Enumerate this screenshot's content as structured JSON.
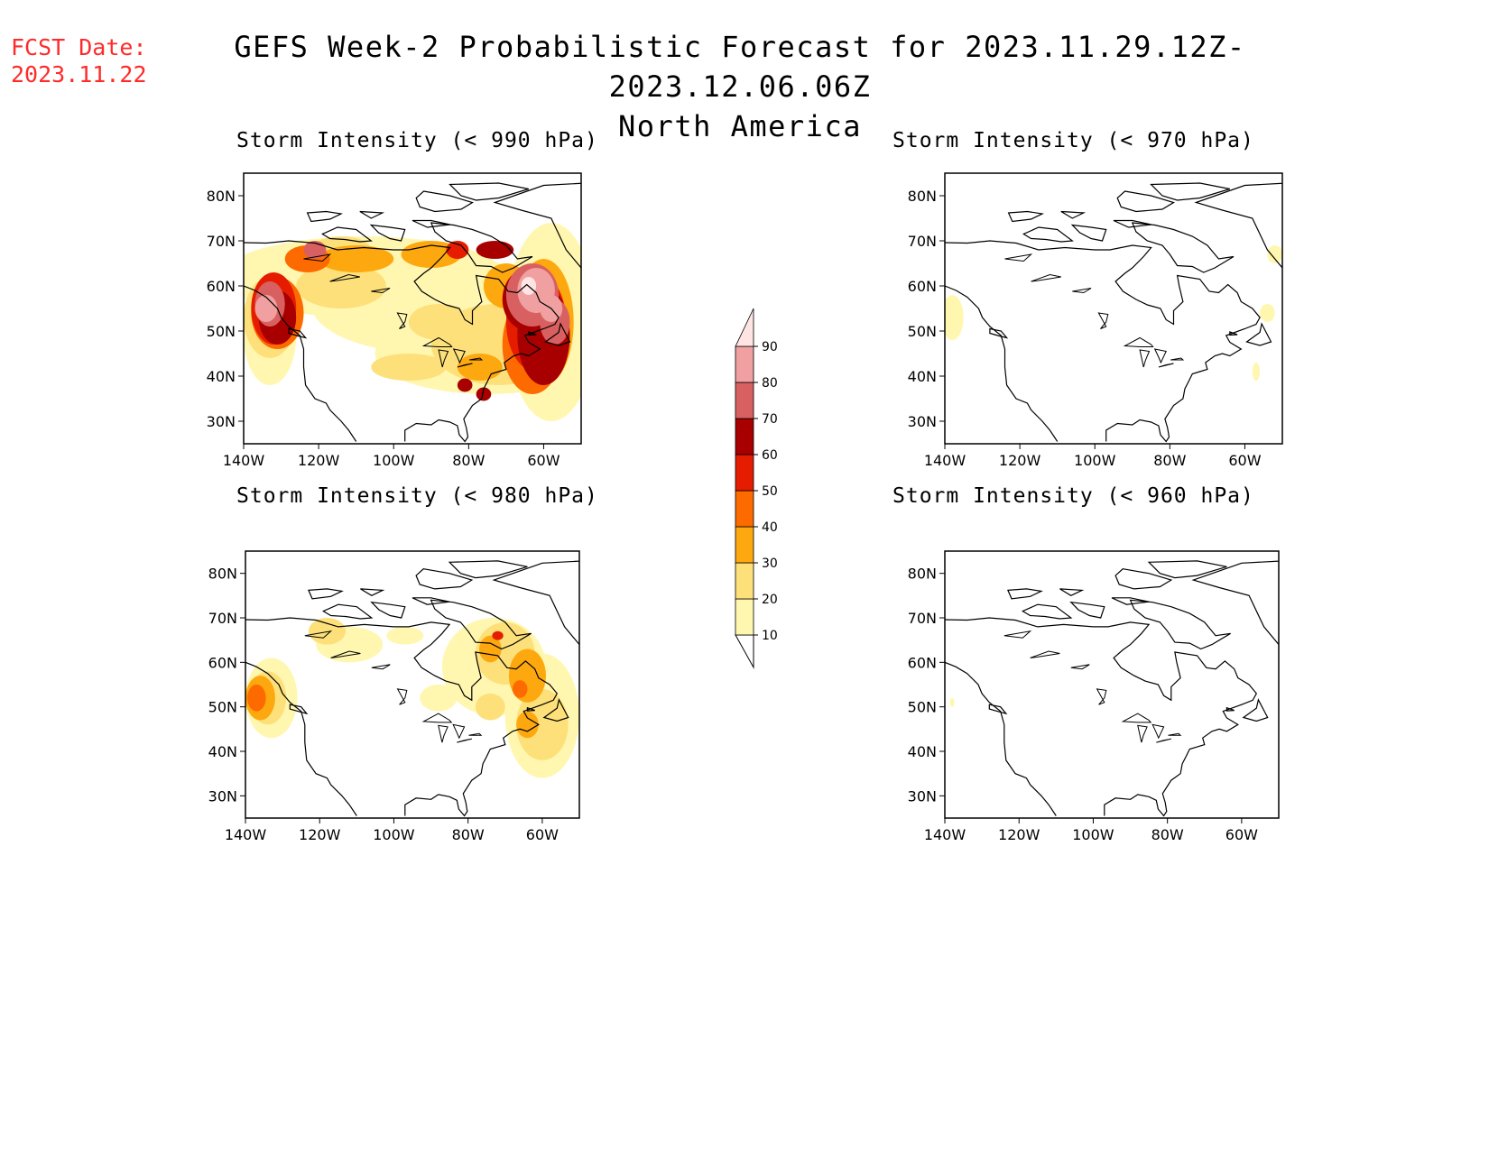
{
  "header": {
    "fcst_label": "FCST Date:",
    "fcst_date": "2023.11.22",
    "title": "GEFS Week-2 Probabilistic Forecast for 2023.11.29.12Z-2023.12.06.06Z",
    "region": "North America"
  },
  "panels": [
    {
      "id": "990",
      "title": "Storm Intensity (< 990 hPa)",
      "coverage": "high"
    },
    {
      "id": "970",
      "title": "Storm Intensity (< 970 hPa)",
      "coverage": "low"
    },
    {
      "id": "980",
      "title": "Storm Intensity (< 980 hPa)",
      "coverage": "medium"
    },
    {
      "id": "960",
      "title": "Storm Intensity (< 960 hPa)",
      "coverage": "none"
    }
  ],
  "axes": {
    "lat_labels": [
      "80N",
      "70N",
      "60N",
      "50N",
      "40N",
      "30N"
    ],
    "lat_values": [
      80,
      70,
      60,
      50,
      40,
      30
    ],
    "lon_labels": [
      "140W",
      "120W",
      "100W",
      "80W",
      "60W"
    ],
    "lon_values": [
      -140,
      -120,
      -100,
      -80,
      -60
    ],
    "lat_range": [
      25,
      85
    ],
    "lon_range": [
      -140,
      -50
    ]
  },
  "colorbar": {
    "levels": [
      "10",
      "20",
      "30",
      "40",
      "50",
      "60",
      "70",
      "80",
      "90"
    ],
    "colors": [
      "#fff7b0",
      "#fde07a",
      "#fda80e",
      "#fd6a00",
      "#e61c00",
      "#a80000",
      "#d96060",
      "#f0a0a0",
      "#ffe4e4"
    ]
  }
}
